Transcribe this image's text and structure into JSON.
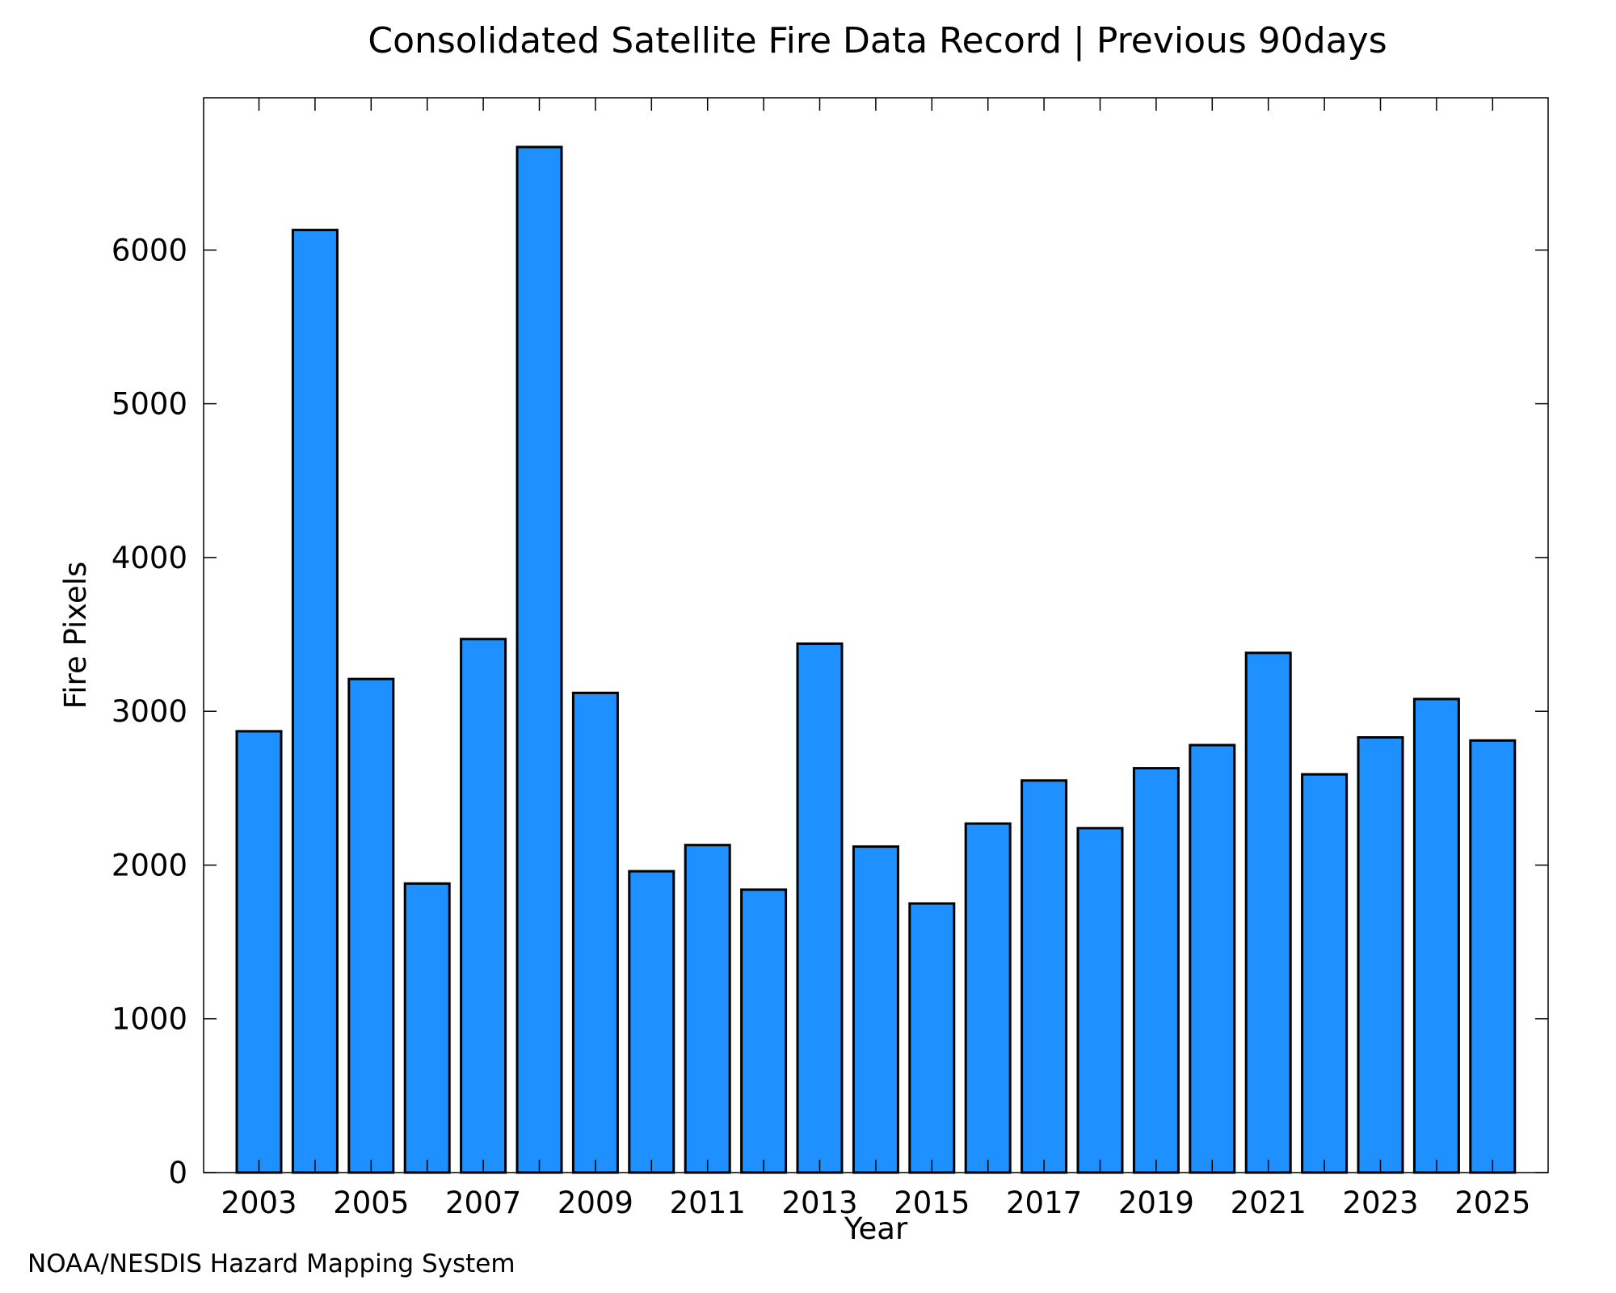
{
  "chart_data": {
    "type": "bar",
    "title": "Consolidated Satellite Fire Data Record | Previous 90days",
    "xlabel": "Year",
    "ylabel": "Fire Pixels",
    "categories": [
      "2003",
      "2004",
      "2005",
      "2006",
      "2007",
      "2008",
      "2009",
      "2010",
      "2011",
      "2012",
      "2013",
      "2014",
      "2015",
      "2016",
      "2017",
      "2018",
      "2019",
      "2020",
      "2021",
      "2022",
      "2023",
      "2024",
      "2025"
    ],
    "values": [
      2870,
      6130,
      3210,
      1880,
      3470,
      6670,
      3120,
      1960,
      2130,
      1840,
      3440,
      2120,
      1750,
      2270,
      2550,
      2240,
      2630,
      2780,
      3380,
      2590,
      2830,
      3080,
      2810
    ],
    "x_tick_labels": [
      "2003",
      "2005",
      "2007",
      "2009",
      "2011",
      "2013",
      "2015",
      "2017",
      "2019",
      "2021",
      "2023",
      "2025"
    ],
    "y_ticks": [
      0,
      1000,
      2000,
      3000,
      4000,
      5000,
      6000
    ],
    "ylim": [
      0,
      6990
    ],
    "grid": false,
    "bar_color": "#1e90ff",
    "edge_color": "#000000",
    "credit": "NOAA/NESDIS Hazard Mapping System",
    "credit_color": "#808080"
  }
}
